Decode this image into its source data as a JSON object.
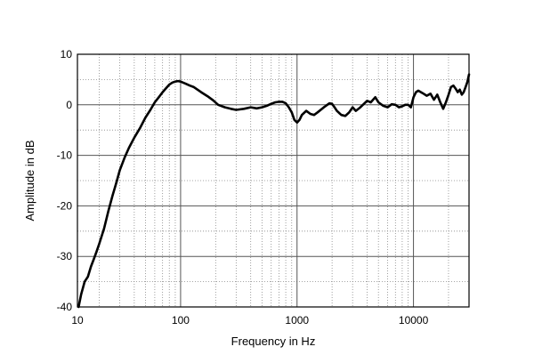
{
  "chart_data": {
    "type": "line",
    "title": "",
    "xlabel": "Frequency in Hz",
    "ylabel": "Amplitude in dB",
    "x_scale": "log",
    "xlim": [
      13,
      30000
    ],
    "ylim": [
      -40,
      10
    ],
    "grid": true,
    "x_ticks": [
      10,
      100,
      1000,
      10000
    ],
    "x_tick_labels": [
      "10",
      "100",
      "1000",
      "10000"
    ],
    "y_ticks": [
      10,
      0,
      -10,
      -20,
      -30,
      -40
    ],
    "y_tick_labels": [
      "10",
      "0",
      "-10",
      "-20",
      "-30",
      "-40"
    ],
    "series": [
      {
        "color": "#000000",
        "x": [
          13.3,
          14,
          15,
          16,
          17,
          18,
          19,
          20,
          22,
          24,
          26,
          28,
          30,
          33,
          36,
          40,
          45,
          50,
          55,
          60,
          65,
          70,
          75,
          80,
          85,
          90,
          95,
          100,
          110,
          120,
          130,
          140,
          150,
          170,
          190,
          210,
          240,
          270,
          300,
          350,
          400,
          450,
          500,
          550,
          600,
          650,
          700,
          750,
          800,
          850,
          900,
          950,
          1000,
          1050,
          1100,
          1200,
          1300,
          1400,
          1500,
          1700,
          1900,
          2000,
          2100,
          2200,
          2400,
          2600,
          2800,
          3000,
          3200,
          3500,
          3800,
          4000,
          4300,
          4700,
          5000,
          5500,
          6000,
          6500,
          7000,
          7500,
          8000,
          8500,
          9000,
          9500,
          10000,
          10500,
          11000,
          12000,
          13000,
          14000,
          15000,
          16000,
          17000,
          18000,
          19000,
          20000,
          21000,
          22000,
          23000,
          24000,
          25000,
          26000,
          27000,
          28000,
          29000,
          30000
        ],
        "y": [
          -40,
          -37.5,
          -35,
          -34,
          -32,
          -30.5,
          -29,
          -27.5,
          -24.5,
          -21,
          -18,
          -15.5,
          -13,
          -10.5,
          -8.5,
          -6.5,
          -4.5,
          -2.5,
          -1,
          0.5,
          1.5,
          2.5,
          3.3,
          4.0,
          4.4,
          4.6,
          4.7,
          4.6,
          4.2,
          3.8,
          3.5,
          3.0,
          2.5,
          1.7,
          0.9,
          0.0,
          -0.5,
          -0.8,
          -1.0,
          -0.8,
          -0.5,
          -0.7,
          -0.5,
          -0.2,
          0.2,
          0.5,
          0.6,
          0.6,
          0.3,
          -0.5,
          -1.5,
          -3.0,
          -3.5,
          -3.0,
          -2.0,
          -1.2,
          -1.8,
          -2.0,
          -1.5,
          -0.5,
          0.3,
          0.2,
          -0.5,
          -1.2,
          -2.0,
          -2.2,
          -1.5,
          -0.5,
          -1.2,
          -0.5,
          0.3,
          0.8,
          0.5,
          1.5,
          0.5,
          -0.2,
          -0.5,
          0.1,
          0.0,
          -0.5,
          -0.3,
          0.0,
          0.0,
          -0.5,
          1.5,
          2.5,
          2.8,
          2.3,
          1.8,
          2.2,
          1.0,
          2.0,
          0.5,
          -0.8,
          0.5,
          2.0,
          3.5,
          3.8,
          3.2,
          2.5,
          3.0,
          2.0,
          2.5,
          3.5,
          4.5,
          6.0
        ]
      }
    ]
  }
}
